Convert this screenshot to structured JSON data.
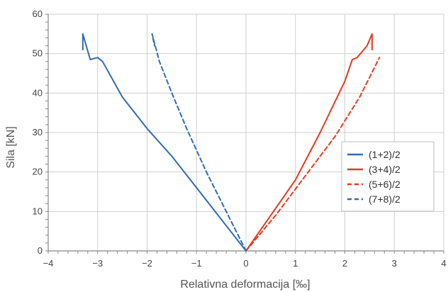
{
  "chart_data": {
    "type": "line",
    "title": "",
    "xlabel": "Relativna deformacija [‰]",
    "ylabel": "Sila [kN]",
    "xlim": [
      -4,
      4
    ],
    "ylim": [
      0,
      60
    ],
    "xticks": [
      "−4",
      "−3",
      "−2",
      "−1",
      "0",
      "1",
      "2",
      "3",
      "4"
    ],
    "yticks": [
      "0",
      "10",
      "20",
      "30",
      "40",
      "50",
      "60"
    ],
    "grid": true,
    "legend_position": "right",
    "series": [
      {
        "name": "(1+2)/2",
        "color": "#2e6db4",
        "dash": "solid",
        "points": [
          [
            0,
            0
          ],
          [
            -0.5,
            8
          ],
          [
            -1.0,
            16
          ],
          [
            -1.5,
            24
          ],
          [
            -2.0,
            31
          ],
          [
            -2.5,
            39
          ],
          [
            -2.9,
            48
          ],
          [
            -3.0,
            49
          ],
          [
            -3.15,
            48.5
          ],
          [
            -3.3,
            55
          ],
          [
            -3.3,
            51
          ]
        ]
      },
      {
        "name": "(3+4)/2",
        "color": "#e8391d",
        "dash": "solid",
        "points": [
          [
            0,
            0
          ],
          [
            0.5,
            9
          ],
          [
            1.0,
            18
          ],
          [
            1.5,
            30
          ],
          [
            2.0,
            43
          ],
          [
            2.15,
            48.5
          ],
          [
            2.25,
            49
          ],
          [
            2.45,
            52
          ],
          [
            2.55,
            55
          ],
          [
            2.55,
            51
          ]
        ]
      },
      {
        "name": "(5+6)/2",
        "color": "#e8391d",
        "dash": "dashed",
        "points": [
          [
            0,
            0
          ],
          [
            0.6,
            9
          ],
          [
            1.2,
            19
          ],
          [
            1.8,
            29
          ],
          [
            2.3,
            39
          ],
          [
            2.7,
            49
          ]
        ]
      },
      {
        "name": "(7+8)/2",
        "color": "#2e6db4",
        "dash": "dashed",
        "points": [
          [
            0,
            0
          ],
          [
            -0.4,
            10
          ],
          [
            -0.8,
            20
          ],
          [
            -1.2,
            31
          ],
          [
            -1.5,
            40
          ],
          [
            -1.75,
            48
          ],
          [
            -1.9,
            55
          ],
          [
            -1.85,
            52
          ]
        ]
      }
    ]
  }
}
